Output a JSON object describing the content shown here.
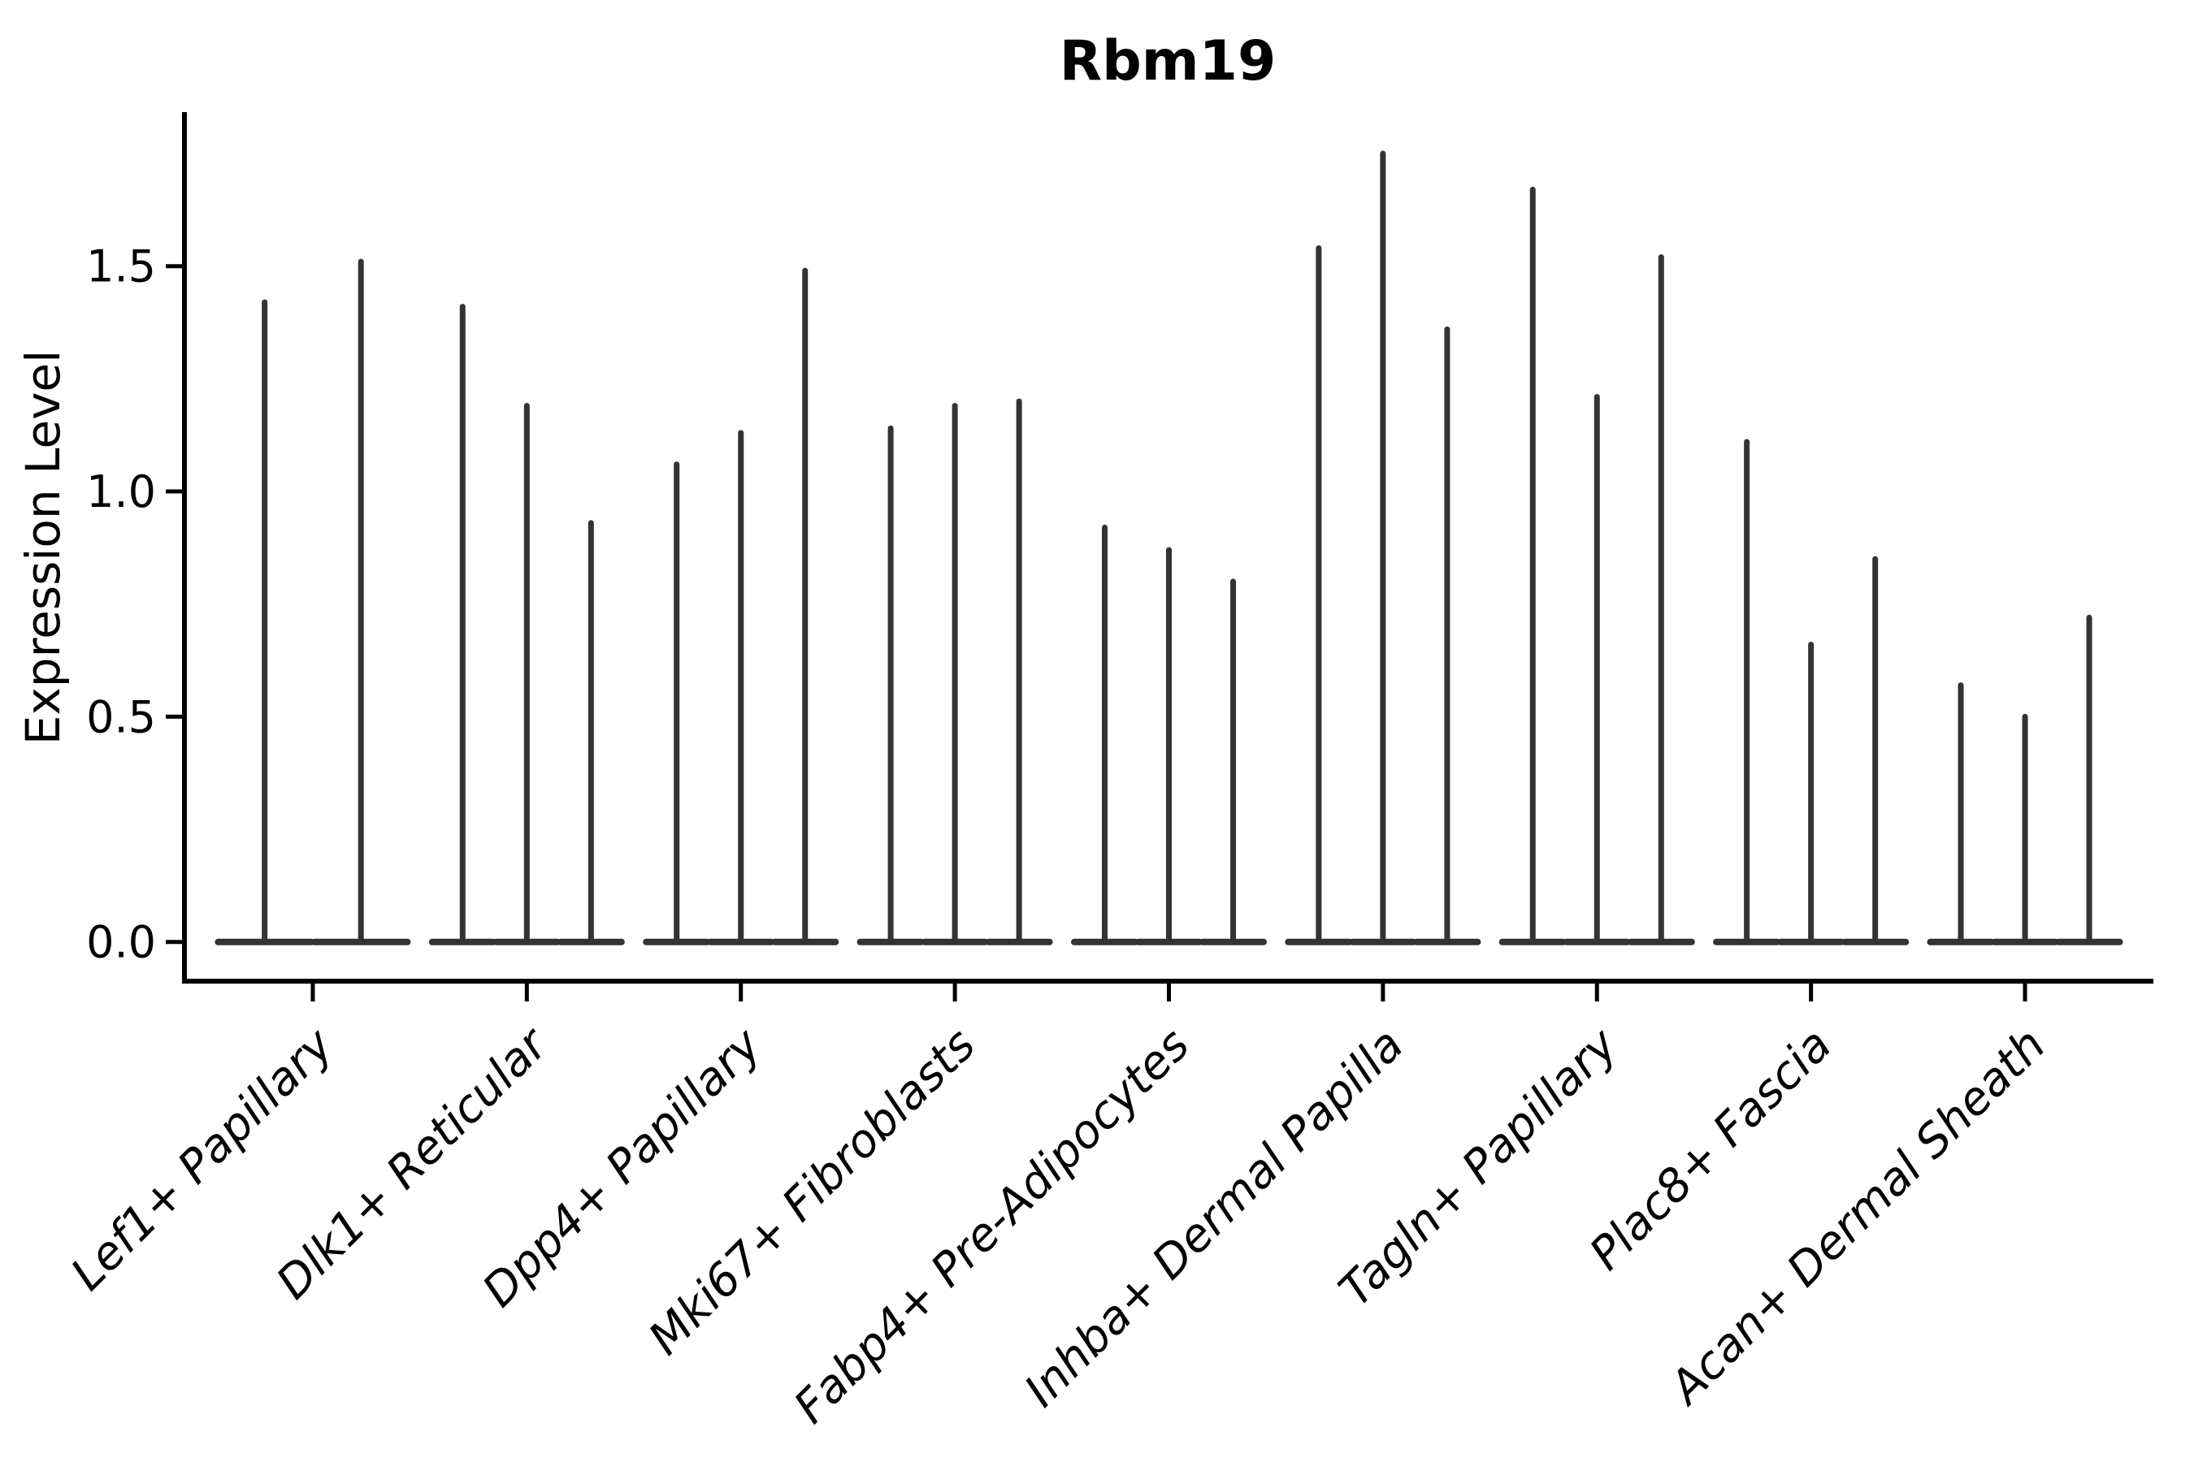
{
  "figure": {
    "background": "#ffffff"
  },
  "chart_data": {
    "type": "violin",
    "title": "Rbm19",
    "ylabel": "Expression Level",
    "xlabel": "",
    "yticks": [
      0.0,
      0.5,
      1.0,
      1.5
    ],
    "ytick_labels": [
      "0.0",
      "0.5",
      "1.0",
      "1.5"
    ],
    "ylim": [
      -0.087,
      1.842
    ],
    "grid": false,
    "legend": false,
    "violin_shape": "mass concentrated at 0 with a thin vertical tail rising to the maximum value",
    "series": [
      {
        "category": "Lef1+ Papillary",
        "violin_max": [
          1.42,
          1.51
        ]
      },
      {
        "category": "Dlk1+ Reticular",
        "violin_max": [
          1.41,
          1.19,
          0.93
        ]
      },
      {
        "category": "Dpp4+ Papillary",
        "violin_max": [
          1.06,
          1.13,
          1.49
        ]
      },
      {
        "category": "Mki67+ Fibroblasts",
        "violin_max": [
          1.14,
          1.19,
          1.2
        ]
      },
      {
        "category": "Fabp4+ Pre-Adipocytes",
        "violin_max": [
          0.92,
          0.87,
          0.8
        ]
      },
      {
        "category": "Inhba+ Dermal Papilla",
        "violin_max": [
          1.54,
          1.75,
          1.36
        ]
      },
      {
        "category": "Tagln+ Papillary",
        "violin_max": [
          1.67,
          1.21,
          1.52
        ]
      },
      {
        "category": "Plac8+ Fascia",
        "violin_max": [
          1.11,
          0.66,
          0.85
        ]
      },
      {
        "category": "Acan+ Dermal Sheath",
        "violin_max": [
          0.57,
          0.5,
          0.72
        ]
      }
    ],
    "colors": {
      "violin": "#333333",
      "axis": "#000000",
      "text": "#000000"
    }
  }
}
